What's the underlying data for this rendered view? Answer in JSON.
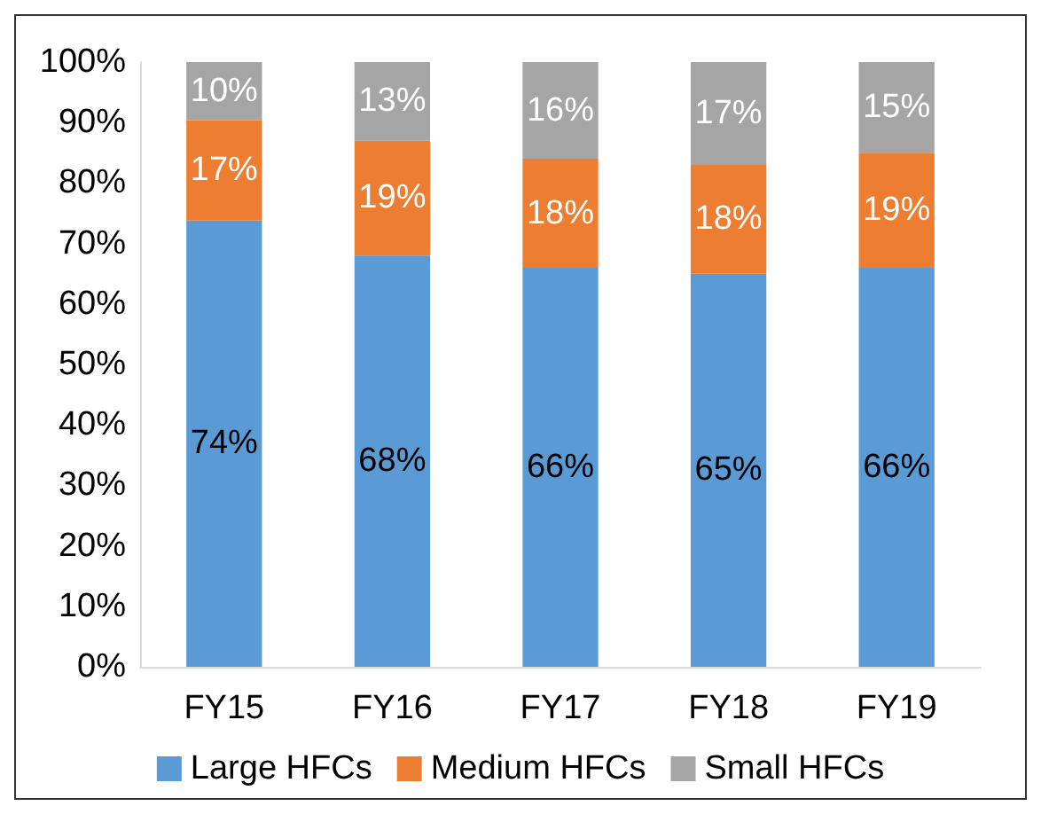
{
  "chart_data": {
    "type": "bar",
    "stacked": true,
    "categories": [
      "FY15",
      "FY16",
      "FY17",
      "FY18",
      "FY19"
    ],
    "series": [
      {
        "name": "Large HFCs",
        "color": "#5b9bd5",
        "values": [
          73.8,
          68,
          66,
          65,
          66
        ],
        "value_labels": [
          "74%",
          "68%",
          "66%",
          "65%",
          "66%"
        ]
      },
      {
        "name": "Medium HFCs",
        "color": "#ed7d31",
        "values": [
          16.6,
          19,
          18,
          18,
          19
        ],
        "value_labels": [
          "17%",
          "19%",
          "18%",
          "18%",
          "19%"
        ]
      },
      {
        "name": "Small HFCs",
        "color": "#a5a5a5",
        "values": [
          9.6,
          13,
          16,
          17,
          15
        ],
        "value_labels": [
          "10%",
          "13%",
          "16%",
          "17%",
          "15%"
        ]
      }
    ],
    "ylim": [
      0,
      100
    ],
    "yticks": [
      {
        "value": 0,
        "label": "0%"
      },
      {
        "value": 10,
        "label": "10%"
      },
      {
        "value": 20,
        "label": "20%"
      },
      {
        "value": 30,
        "label": "30%"
      },
      {
        "value": 40,
        "label": "40%"
      },
      {
        "value": 50,
        "label": "50%"
      },
      {
        "value": 60,
        "label": "60%"
      },
      {
        "value": 70,
        "label": "70%"
      },
      {
        "value": 80,
        "label": "80%"
      },
      {
        "value": 90,
        "label": "90%"
      },
      {
        "value": 100,
        "label": "100%"
      }
    ],
    "grid": false,
    "legend": "bottom"
  }
}
